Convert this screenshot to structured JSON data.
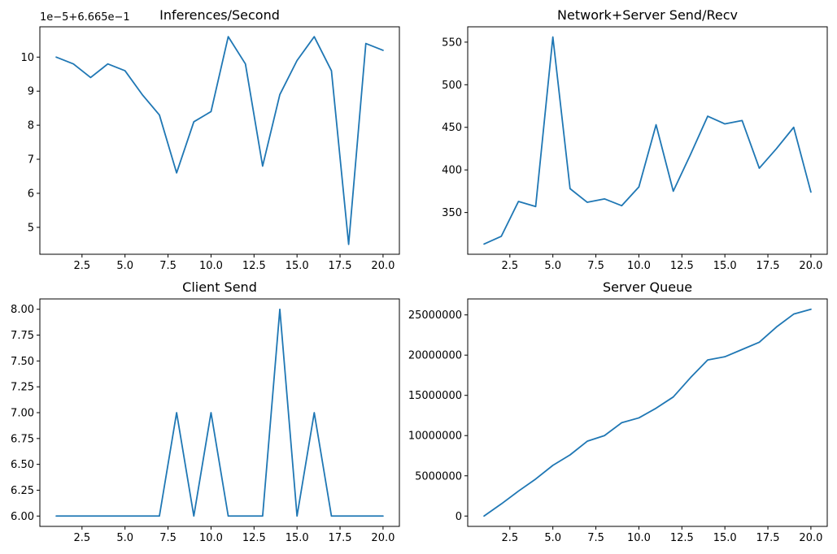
{
  "chart_data": [
    {
      "type": "line",
      "title": "Inferences/Second",
      "offset_label": "1e−5+6.665e−1",
      "x": [
        1,
        2,
        3,
        4,
        5,
        6,
        7,
        8,
        9,
        10,
        11,
        12,
        13,
        14,
        15,
        16,
        17,
        18,
        19,
        20
      ],
      "values": [
        10.0,
        9.8,
        9.4,
        9.8,
        9.6,
        8.9,
        8.3,
        6.6,
        8.1,
        8.4,
        10.6,
        9.8,
        6.8,
        8.9,
        9.9,
        10.6,
        9.6,
        4.5,
        10.4,
        10.2
      ],
      "xlim": [
        0.05,
        20.95
      ],
      "ylim": [
        4.21,
        10.89
      ],
      "xticks": [
        2.5,
        5.0,
        7.5,
        10.0,
        12.5,
        15.0,
        17.5,
        20.0
      ],
      "xtick_labels": [
        "2.5",
        "5.0",
        "7.5",
        "10.0",
        "12.5",
        "15.0",
        "17.5",
        "20.0"
      ],
      "yticks": [
        5,
        6,
        7,
        8,
        9,
        10
      ],
      "ytick_labels": [
        "5",
        "6",
        "7",
        "8",
        "9",
        "10"
      ]
    },
    {
      "type": "line",
      "title": "Network+Server Send/Recv",
      "x": [
        1,
        2,
        3,
        4,
        5,
        6,
        7,
        8,
        9,
        10,
        11,
        12,
        13,
        14,
        15,
        16,
        17,
        18,
        19,
        20
      ],
      "values": [
        313,
        322,
        363,
        357,
        556,
        378,
        362,
        366,
        358,
        380,
        453,
        375,
        418,
        463,
        454,
        458,
        402,
        425,
        450,
        374
      ],
      "xlim": [
        0.05,
        20.95
      ],
      "ylim": [
        301,
        568
      ],
      "xticks": [
        2.5,
        5.0,
        7.5,
        10.0,
        12.5,
        15.0,
        17.5,
        20.0
      ],
      "xtick_labels": [
        "2.5",
        "5.0",
        "7.5",
        "10.0",
        "12.5",
        "15.0",
        "17.5",
        "20.0"
      ],
      "yticks": [
        350,
        400,
        450,
        500,
        550
      ],
      "ytick_labels": [
        "350",
        "400",
        "450",
        "500",
        "550"
      ]
    },
    {
      "type": "line",
      "title": "Client Send",
      "x": [
        1,
        2,
        3,
        4,
        5,
        6,
        7,
        8,
        9,
        10,
        11,
        12,
        13,
        14,
        15,
        16,
        17,
        18,
        19,
        20
      ],
      "values": [
        6,
        6,
        6,
        6,
        6,
        6,
        6,
        7,
        6,
        7,
        6,
        6,
        6,
        8,
        6,
        7,
        6,
        6,
        6,
        6
      ],
      "xlim": [
        0.05,
        20.95
      ],
      "ylim": [
        5.9,
        8.1
      ],
      "xticks": [
        2.5,
        5.0,
        7.5,
        10.0,
        12.5,
        15.0,
        17.5,
        20.0
      ],
      "xtick_labels": [
        "2.5",
        "5.0",
        "7.5",
        "10.0",
        "12.5",
        "15.0",
        "17.5",
        "20.0"
      ],
      "yticks": [
        6.0,
        6.25,
        6.5,
        6.75,
        7.0,
        7.25,
        7.5,
        7.75,
        8.0
      ],
      "ytick_labels": [
        "6.00",
        "6.25",
        "6.50",
        "6.75",
        "7.00",
        "7.25",
        "7.50",
        "7.75",
        "8.00"
      ]
    },
    {
      "type": "line",
      "title": "Server Queue",
      "x": [
        1,
        2,
        3,
        4,
        5,
        6,
        7,
        8,
        9,
        10,
        11,
        12,
        13,
        14,
        15,
        16,
        17,
        18,
        19,
        20
      ],
      "values": [
        0,
        1500000,
        3100000,
        4600000,
        6300000,
        7600000,
        9300000,
        10000000,
        11600000,
        12200000,
        13400000,
        14800000,
        17200000,
        19400000,
        19800000,
        20700000,
        21600000,
        23500000,
        25100000,
        25700000
      ],
      "xlim": [
        0.05,
        20.95
      ],
      "ylim": [
        -1285000,
        26985000
      ],
      "xticks": [
        2.5,
        5.0,
        7.5,
        10.0,
        12.5,
        15.0,
        17.5,
        20.0
      ],
      "xtick_labels": [
        "2.5",
        "5.0",
        "7.5",
        "10.0",
        "12.5",
        "15.0",
        "17.5",
        "20.0"
      ],
      "yticks": [
        0,
        5000000,
        10000000,
        15000000,
        20000000,
        25000000
      ],
      "ytick_labels": [
        "0",
        "5000000",
        "10000000",
        "15000000",
        "20000000",
        "25000000"
      ]
    }
  ]
}
